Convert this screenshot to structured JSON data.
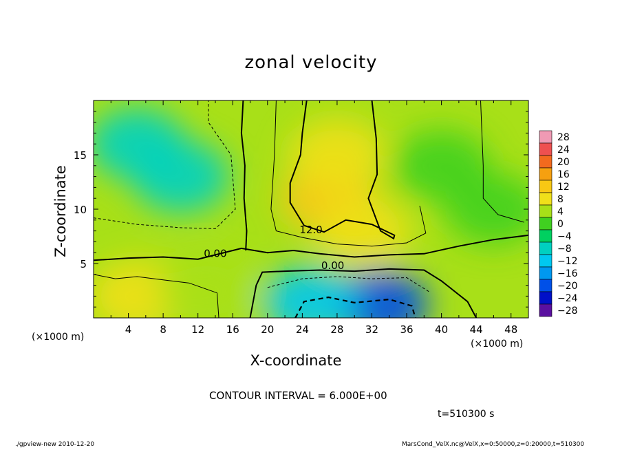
{
  "chart_data": {
    "type": "heatmap",
    "title": "zonal velocity",
    "xlabel": "X-coordinate",
    "ylabel": "Z-coordinate",
    "x_unit_left": "(×1000 m)",
    "x_unit_right": "(×1000 m)",
    "xlim": [
      0,
      50
    ],
    "ylim": [
      0,
      20
    ],
    "x_ticks": [
      "4",
      "8",
      "12",
      "16",
      "20",
      "24",
      "28",
      "32",
      "36",
      "40",
      "44",
      "48"
    ],
    "y_ticks": [
      "5",
      "10",
      "15"
    ],
    "colorbar": {
      "levels": [
        "28",
        "24",
        "20",
        "16",
        "12",
        "8",
        "4",
        "0",
        "−4",
        "−8",
        "−12",
        "−16",
        "−20",
        "−24",
        "−28"
      ],
      "colors": [
        "#f09ab4",
        "#ee5050",
        "#f26a1e",
        "#f6a010",
        "#f8c814",
        "#f0e01a",
        "#a8e018",
        "#40d020",
        "#00d060",
        "#00d0c0",
        "#00c8f0",
        "#0098f0",
        "#0050e8",
        "#0010c8",
        "#5a10a0"
      ]
    },
    "contour_labels": [
      "12.0",
      "0.00",
      "0.00"
    ],
    "contour_interval": "CONTOUR INTERVAL = 6.000E+00",
    "time_text": "t=510300 s",
    "footer_left": "./gpview-new  2010-12-20",
    "footer_right": "MarsCond_VelX.nc@VelX,x=0:50000,z=0:20000,t=510300",
    "field_blobs": [
      {
        "x": 10,
        "z": 13,
        "u": -8
      },
      {
        "x": 5,
        "z": 16,
        "u": -5
      },
      {
        "x": 27,
        "z": 11,
        "u": 14
      },
      {
        "x": 28,
        "z": 15,
        "u": 10
      },
      {
        "x": 31,
        "z": 8,
        "u": 10
      },
      {
        "x": 33,
        "z": 1.2,
        "u": -20
      },
      {
        "x": 25,
        "z": 1.5,
        "u": -12
      },
      {
        "x": 5,
        "z": 2,
        "u": 9
      },
      {
        "x": 13,
        "z": 2.5,
        "u": 7
      },
      {
        "x": 40,
        "z": 14,
        "u": 3
      },
      {
        "x": 46,
        "z": 10,
        "u": 1
      }
    ]
  }
}
